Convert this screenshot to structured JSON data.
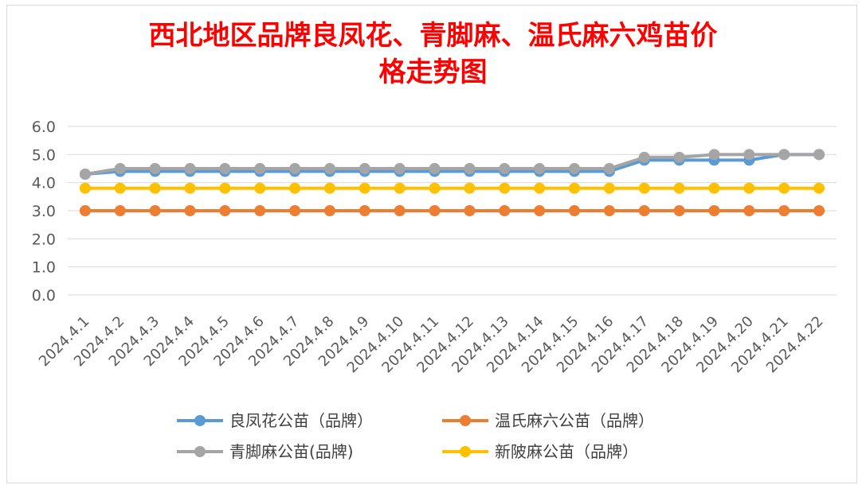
{
  "chart_data": {
    "type": "line",
    "title_lines": [
      "西北地区品牌良凤花、青脚麻、温氏麻六鸡苗价",
      "格走势图"
    ],
    "categories": [
      "2024.4.1",
      "2024.4.2",
      "2024.4.3",
      "2024.4.4",
      "2024.4.5",
      "2024.4.6",
      "2024.4.7",
      "2024.4.8",
      "2024.4.9",
      "2024.4.10",
      "2024.4.11",
      "2024.4.12",
      "2024.4.13",
      "2024.4.14",
      "2024.4.15",
      "2024.4.16",
      "2024.4.17",
      "2024.4.18",
      "2024.4.19",
      "2024.4.20",
      "2024.4.21",
      "2024.4.22"
    ],
    "ylim": [
      0,
      6
    ],
    "yticks": [
      "0.0",
      "1.0",
      "2.0",
      "3.0",
      "4.0",
      "5.0",
      "6.0"
    ],
    "grid": true,
    "legend_position": "bottom",
    "series": [
      {
        "name": "良凤花公苗（品牌）",
        "color": "#5b9bd5",
        "values": [
          4.3,
          4.4,
          4.4,
          4.4,
          4.4,
          4.4,
          4.4,
          4.4,
          4.4,
          4.4,
          4.4,
          4.4,
          4.4,
          4.4,
          4.4,
          4.4,
          4.8,
          4.8,
          4.8,
          4.8,
          5.0,
          5.0
        ]
      },
      {
        "name": "温氏麻六公苗（品牌）",
        "color": "#ed7d31",
        "values": [
          3.0,
          3.0,
          3.0,
          3.0,
          3.0,
          3.0,
          3.0,
          3.0,
          3.0,
          3.0,
          3.0,
          3.0,
          3.0,
          3.0,
          3.0,
          3.0,
          3.0,
          3.0,
          3.0,
          3.0,
          3.0,
          3.0
        ]
      },
      {
        "name": "青脚麻公苗(品牌)",
        "color": "#a5a5a5",
        "values": [
          4.3,
          4.5,
          4.5,
          4.5,
          4.5,
          4.5,
          4.5,
          4.5,
          4.5,
          4.5,
          4.5,
          4.5,
          4.5,
          4.5,
          4.5,
          4.5,
          4.9,
          4.9,
          5.0,
          5.0,
          5.0,
          5.0
        ]
      },
      {
        "name": "新陂麻公苗（品牌）",
        "color": "#ffc000",
        "values": [
          3.8,
          3.8,
          3.8,
          3.8,
          3.8,
          3.8,
          3.8,
          3.8,
          3.8,
          3.8,
          3.8,
          3.8,
          3.8,
          3.8,
          3.8,
          3.8,
          3.8,
          3.8,
          3.8,
          3.8,
          3.8,
          3.8
        ]
      }
    ],
    "draw_order": [
      1,
      3,
      0,
      2
    ]
  }
}
